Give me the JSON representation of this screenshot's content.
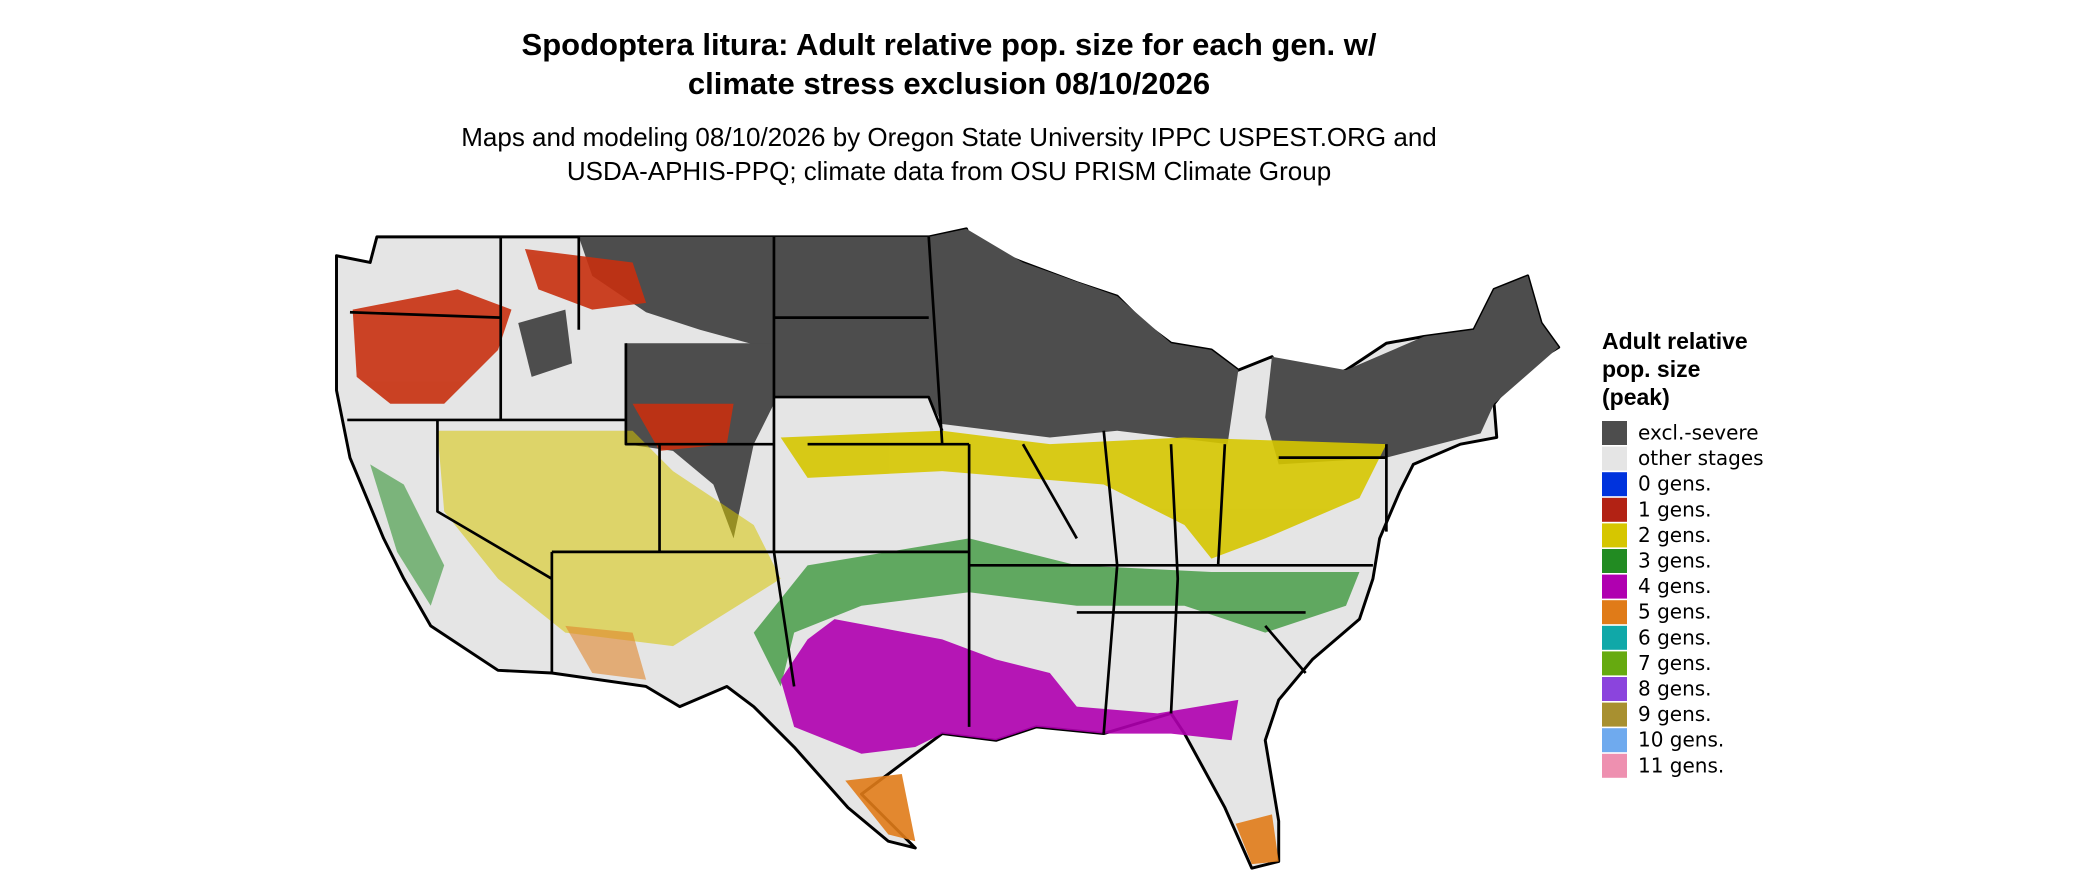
{
  "header": {
    "title_lines": [
      "Spodoptera litura: Adult relative pop. size for each gen. w/",
      "climate stress exclusion 08/10/2026"
    ],
    "subtitle_lines": [
      "Maps and modeling 08/10/2026 by Oregon State University IPPC USPEST.ORG and",
      "USDA-APHIS-PPQ; climate data from OSU PRISM Climate Group"
    ]
  },
  "legend": {
    "title_lines": [
      "Adult relative",
      "pop. size",
      "(peak)"
    ],
    "items": [
      {
        "label": "excl.-severe",
        "color": "#4d4d4d"
      },
      {
        "label": "other stages",
        "color": "#e5e5e5"
      },
      {
        "label": "0 gens.",
        "color": "#0033dd"
      },
      {
        "label": "1 gens.",
        "color": "#b22214"
      },
      {
        "label": "2 gens.",
        "color": "#d6c600"
      },
      {
        "label": "3 gens.",
        "color": "#228b22"
      },
      {
        "label": "4 gens.",
        "color": "#b000b0"
      },
      {
        "label": "5 gens.",
        "color": "#e07b18"
      },
      {
        "label": "6 gens.",
        "color": "#10a8a8"
      },
      {
        "label": "7 gens.",
        "color": "#66aa10"
      },
      {
        "label": "8 gens.",
        "color": "#8b44dd"
      },
      {
        "label": "9 gens.",
        "color": "#a89030"
      },
      {
        "label": "10 gens.",
        "color": "#6faaee"
      },
      {
        "label": "11 gens.",
        "color": "#ee90b0"
      }
    ]
  }
}
